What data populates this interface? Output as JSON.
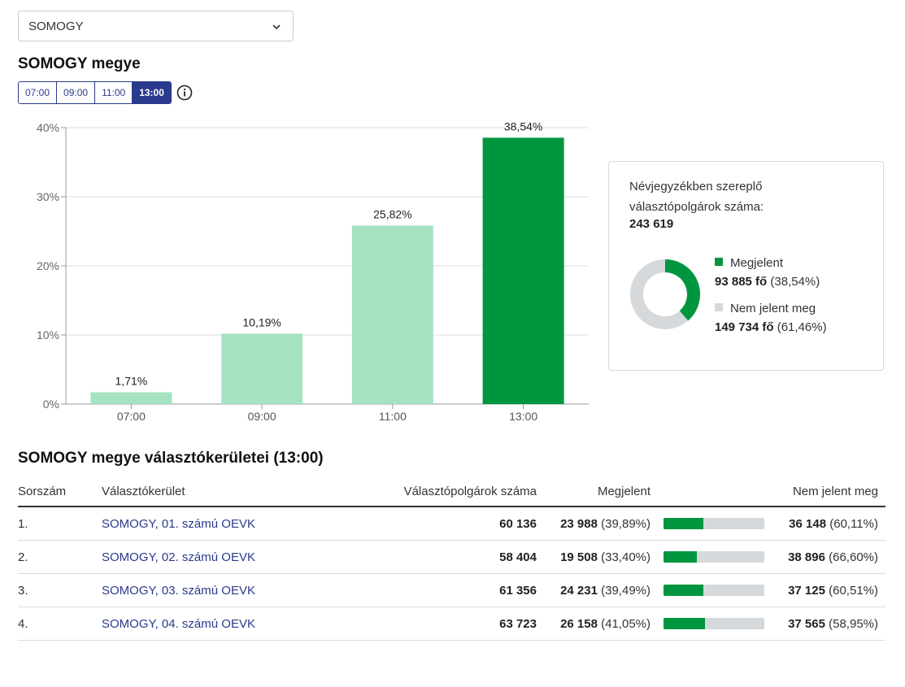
{
  "county_select": {
    "value": "SOMOGY"
  },
  "title": "SOMOGY megye",
  "time_buttons": [
    "07:00",
    "09:00",
    "11:00",
    "13:00"
  ],
  "active_time": "13:00",
  "colors": {
    "accent": "#2b3a8c",
    "green_dark": "#00963f",
    "green_light": "#a5e2c0",
    "gray": "#d5d9dc"
  },
  "chart_data": {
    "type": "bar",
    "categories": [
      "07:00",
      "09:00",
      "11:00",
      "13:00"
    ],
    "values": [
      1.71,
      10.19,
      25.82,
      38.54
    ],
    "value_labels": [
      "1,71%",
      "10,19%",
      "25,82%",
      "38,54%"
    ],
    "highlighted": "13:00",
    "y_ticks": [
      "0%",
      "10%",
      "20%",
      "30%",
      "40%"
    ],
    "ylim": [
      0,
      40
    ],
    "grid": true
  },
  "summary": {
    "label": "Névjegyzékben szereplő választópolgárok száma:",
    "total": "243 619",
    "present_label": "Megjelent",
    "present_count": "93 885 fő",
    "present_pct": "(38,54%)",
    "present_value": 38.54,
    "absent_label": "Nem jelent meg",
    "absent_count": "149 734 fő",
    "absent_pct": "(61,46%)"
  },
  "districts": {
    "title": "SOMOGY megye választókerületei (13:00)",
    "headers": {
      "no": "Sorszám",
      "district": "Választókerület",
      "voters": "Választópolgárok száma",
      "present": "Megjelent",
      "absent": "Nem jelent meg"
    },
    "rows": [
      {
        "no": "1.",
        "name": "SOMOGY, 01. számú OEVK",
        "voters": "60 136",
        "present": "23 988",
        "present_pct": "(39,89%)",
        "present_value": 39.89,
        "absent": "36 148",
        "absent_pct": "(60,11%)"
      },
      {
        "no": "2.",
        "name": "SOMOGY, 02. számú OEVK",
        "voters": "58 404",
        "present": "19 508",
        "present_pct": "(33,40%)",
        "present_value": 33.4,
        "absent": "38 896",
        "absent_pct": "(66,60%)"
      },
      {
        "no": "3.",
        "name": "SOMOGY, 03. számú OEVK",
        "voters": "61 356",
        "present": "24 231",
        "present_pct": "(39,49%)",
        "present_value": 39.49,
        "absent": "37 125",
        "absent_pct": "(60,51%)"
      },
      {
        "no": "4.",
        "name": "SOMOGY, 04. számú OEVK",
        "voters": "63 723",
        "present": "26 158",
        "present_pct": "(41,05%)",
        "present_value": 41.05,
        "absent": "37 565",
        "absent_pct": "(58,95%)"
      }
    ]
  }
}
